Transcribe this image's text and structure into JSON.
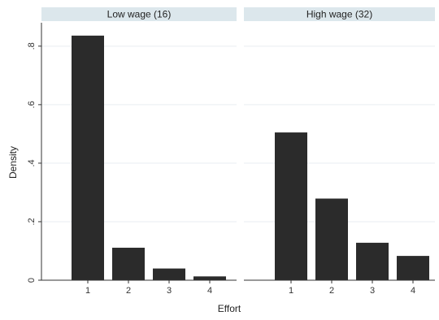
{
  "chart_data": {
    "type": "bar",
    "xlabel": "Effort",
    "ylabel": "Density",
    "ylim": [
      0,
      0.88
    ],
    "yticks": [
      0,
      0.2,
      0.4,
      0.6,
      0.8
    ],
    "ytick_labels": [
      "0",
      ".2",
      ".4",
      ".6",
      ".8"
    ],
    "categories": [
      "1",
      "2",
      "3",
      "4"
    ],
    "grid": true,
    "colors": {
      "bar": "#2b2b2b",
      "strip": "#dce7ec",
      "grid": "#e9eef1"
    },
    "panels": [
      {
        "title": "Low wage (16)",
        "values": [
          0.836,
          0.111,
          0.04,
          0.013
        ]
      },
      {
        "title": "High wage (32)",
        "values": [
          0.505,
          0.279,
          0.128,
          0.083
        ]
      }
    ]
  }
}
